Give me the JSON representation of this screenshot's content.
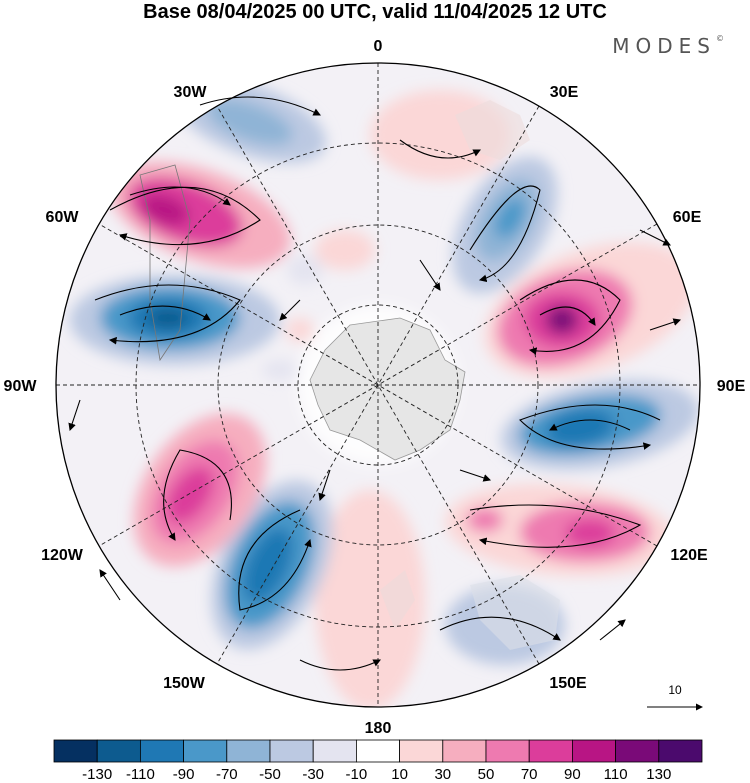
{
  "title": "Base 08/04/2025 00 UTC, valid 11/04/2025 12 UTC",
  "brand": "MODES",
  "brand_mark": "©",
  "map": {
    "projection": "south-polar-stereographic",
    "longitude_labels": {
      "l0": "0",
      "l30e": "30E",
      "l60e": "60E",
      "l90e": "90E",
      "l120e": "120E",
      "l150e": "150E",
      "l180": "180",
      "l150w": "150W",
      "l120w": "120W",
      "l90w": "90W",
      "l60w": "60W",
      "l30w": "30W"
    },
    "reference_vector": "10"
  },
  "colorbar": {
    "colors": [
      "#053061",
      "#0d5b8f",
      "#1f78b4",
      "#4a98c9",
      "#8fb4d6",
      "#bcc9e2",
      "#e4e4f0",
      "#ffffff",
      "#fbd7d7",
      "#f6aebf",
      "#ee7ab0",
      "#dc3d9b",
      "#b81584",
      "#7a0a78",
      "#4b0a6d"
    ],
    "labels": [
      "-130",
      "-110",
      "-90",
      "-70",
      "-50",
      "-30",
      "-10",
      "10",
      "30",
      "50",
      "70",
      "90",
      "110",
      "130"
    ]
  },
  "icons": {
    "wind_vector": "arrow-icon"
  }
}
